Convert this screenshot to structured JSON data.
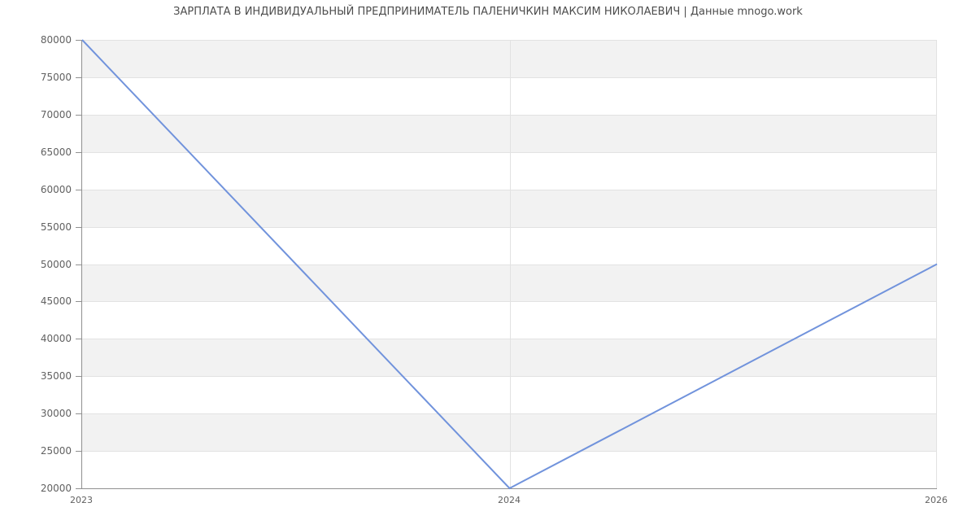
{
  "chart_data": {
    "type": "line",
    "title": "ЗАРПЛАТА В ИНДИВИДУАЛЬНЫЙ ПРЕДПРИНИМАТЕЛЬ ПАЛЕНИЧКИН МАКСИМ НИКОЛАЕВИЧ | Данные mnogo.work",
    "categories": [
      "2023",
      "2024",
      "2026"
    ],
    "series": [
      {
        "name": "salary",
        "values": [
          80000,
          20000,
          50000
        ]
      }
    ],
    "xlabel": "",
    "ylabel": "",
    "ylim": [
      20000,
      80000
    ],
    "yticks": [
      20000,
      25000,
      30000,
      35000,
      40000,
      45000,
      50000,
      55000,
      60000,
      65000,
      70000,
      75000,
      80000
    ],
    "ytick_labels": [
      "20000",
      "25000",
      "30000",
      "35000",
      "40000",
      "45000",
      "50000",
      "55000",
      "60000",
      "65000",
      "70000",
      "75000",
      "80000"
    ],
    "grid": true,
    "legend_position": "none",
    "colors": {
      "line": "#7193DC",
      "band_fill": "#F2F2F2",
      "band_alt_fill": "#FFFFFF",
      "gridline": "#E2E2E2",
      "axis": "#909090",
      "tick_label": "#616161",
      "title": "#4D4D4D"
    }
  }
}
